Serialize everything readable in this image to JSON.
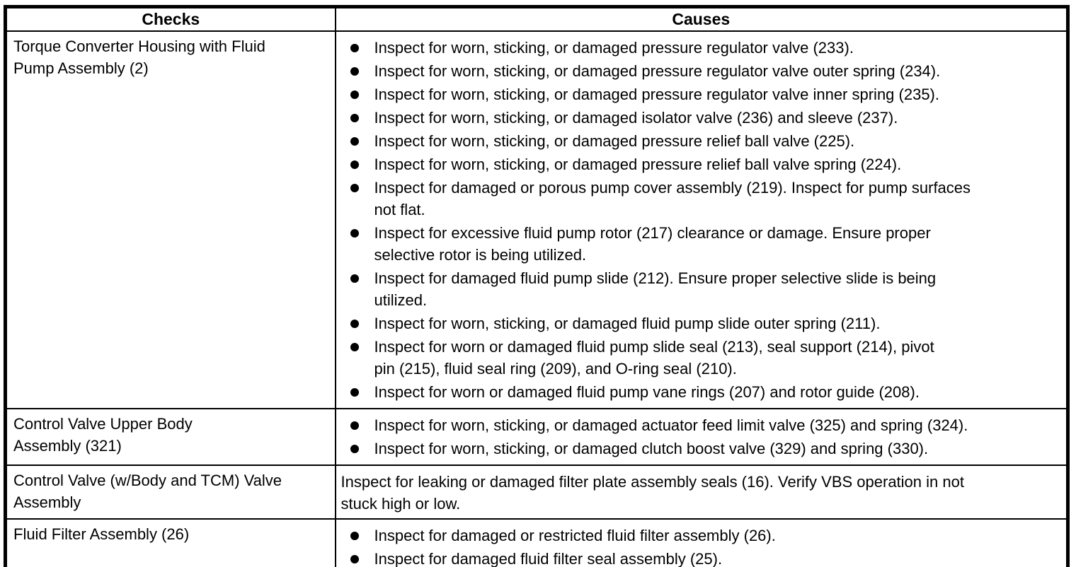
{
  "colors": {
    "border": "#000000",
    "text": "#000000",
    "background": "#ffffff"
  },
  "table": {
    "headers": {
      "checks": "Checks",
      "causes": "Causes"
    },
    "rows": [
      {
        "check": "Torque Converter Housing with Fluid\nPump Assembly (2)",
        "causes": [
          "Inspect for worn, sticking, or damaged pressure regulator valve (233).",
          "Inspect for worn, sticking, or damaged pressure regulator valve outer spring (234).",
          "Inspect for worn, sticking, or damaged pressure regulator valve inner spring (235).",
          "Inspect for worn, sticking, or damaged isolator valve (236) and sleeve (237).",
          "Inspect for worn, sticking, or damaged pressure relief ball valve (225).",
          "Inspect for worn, sticking, or damaged pressure relief ball valve spring (224).",
          "Inspect for damaged or porous pump cover assembly (219). Inspect for pump surfaces\nnot flat.",
          "Inspect for excessive fluid pump rotor (217) clearance or damage. Ensure proper\nselective rotor is being utilized.",
          "Inspect for damaged fluid pump slide (212). Ensure proper selective slide is being\nutilized.",
          "Inspect for worn, sticking, or damaged fluid pump slide outer spring (211).",
          "Inspect for worn or damaged fluid pump slide seal (213), seal support (214), pivot\npin (215), fluid seal ring (209), and O-ring seal (210).",
          "Inspect for worn or damaged fluid pump vane rings (207) and rotor guide (208)."
        ]
      },
      {
        "check": "Control Valve Upper Body\nAssembly (321)",
        "causes": [
          "Inspect for worn, sticking, or damaged actuator feed limit valve (325) and spring (324).",
          "Inspect for worn, sticking, or damaged clutch boost valve (329) and spring (330)."
        ]
      },
      {
        "check": "Control Valve (w/Body and TCM) Valve\nAssembly",
        "causes_plain": "Inspect for leaking or damaged filter plate assembly seals (16). Verify VBS operation in not\nstuck high or low."
      },
      {
        "check": "Fluid Filter Assembly (26)",
        "causes": [
          "Inspect for damaged or restricted fluid filter assembly (26).",
          "Inspect for damaged fluid filter seal assembly (25)."
        ]
      }
    ]
  }
}
